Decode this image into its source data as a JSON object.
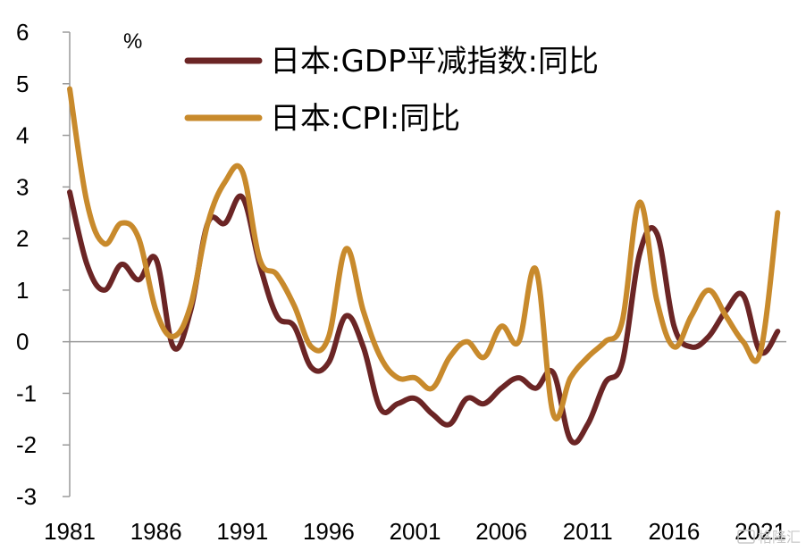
{
  "chart_data": {
    "type": "line",
    "unit": "%",
    "x": [
      1981,
      1982,
      1983,
      1984,
      1985,
      1986,
      1987,
      1988,
      1989,
      1990,
      1991,
      1992,
      1993,
      1994,
      1995,
      1996,
      1997,
      1998,
      1999,
      2000,
      2001,
      2002,
      2003,
      2004,
      2005,
      2006,
      2007,
      2008,
      2009,
      2010,
      2011,
      2012,
      2013,
      2014,
      2015,
      2016,
      2017,
      2018,
      2019,
      2020,
      2021,
      2022
    ],
    "xticks": [
      "1981",
      "1986",
      "1991",
      "1996",
      "2001",
      "2006",
      "2011",
      "2016",
      "2021"
    ],
    "yticks": [
      "6",
      "5",
      "4",
      "3",
      "2",
      "1",
      "0",
      "-1",
      "-2",
      "-3"
    ],
    "ylim": [
      -3,
      6
    ],
    "xlim": [
      1981,
      2022.5
    ],
    "series": [
      {
        "name": "日本:GDP平减指数:同比",
        "color": "#6b2525",
        "values": [
          2.9,
          1.5,
          1.0,
          1.5,
          1.2,
          1.6,
          -0.1,
          0.6,
          2.3,
          2.3,
          2.8,
          1.5,
          0.5,
          0.3,
          -0.5,
          -0.4,
          0.5,
          -0.1,
          -1.3,
          -1.2,
          -1.1,
          -1.4,
          -1.6,
          -1.1,
          -1.2,
          -0.9,
          -0.7,
          -0.9,
          -0.6,
          -1.9,
          -1.6,
          -0.8,
          -0.4,
          1.7,
          2.1,
          0.3,
          -0.1,
          0.1,
          0.6,
          0.9,
          -0.2,
          0.2
        ]
      },
      {
        "name": "日本:CPI:同比",
        "color": "#c88a2c",
        "values": [
          4.9,
          2.7,
          1.9,
          2.3,
          2.0,
          0.6,
          0.1,
          0.7,
          2.3,
          3.1,
          3.3,
          1.6,
          1.3,
          0.7,
          -0.1,
          0.1,
          1.8,
          0.6,
          -0.3,
          -0.7,
          -0.7,
          -0.9,
          -0.3,
          0.0,
          -0.3,
          0.3,
          0.0,
          1.4,
          -1.4,
          -0.7,
          -0.3,
          0.0,
          0.4,
          2.7,
          0.8,
          -0.1,
          0.5,
          1.0,
          0.5,
          0.0,
          -0.2,
          2.5
        ]
      }
    ],
    "legend_position": "top-center",
    "grid": false
  },
  "watermark": "格隆汇"
}
